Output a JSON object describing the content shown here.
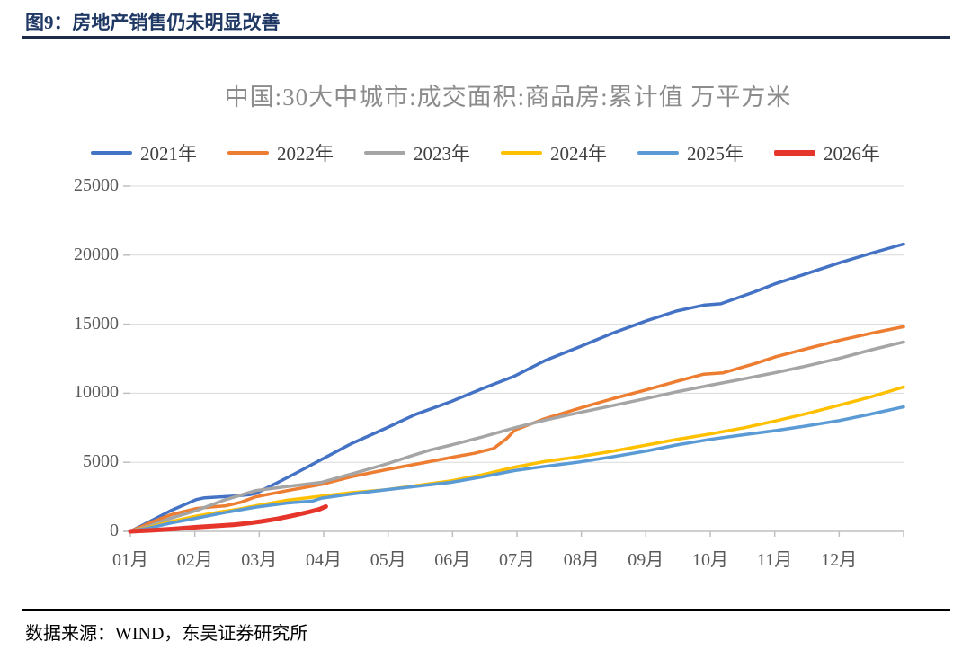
{
  "page": {
    "figure_label": "图9：房地产销售仍未明显改善",
    "source_note": "数据来源：WIND，东吴证券研究所"
  },
  "chart_data": {
    "type": "line",
    "title": "中国:30大中城市:成交面积:商品房:累计值 万平方米",
    "unit": "万平方米",
    "ylim": [
      0,
      25000
    ],
    "grid": "horizontal",
    "legend_position": "top",
    "yticks": [
      {
        "label": "25000",
        "value": 25000
      },
      {
        "label": "20000",
        "value": 20000
      },
      {
        "label": "15000",
        "value": 15000
      },
      {
        "label": "10000",
        "value": 10000
      },
      {
        "label": "5000",
        "value": 5000
      },
      {
        "label": "0",
        "value": 0
      }
    ],
    "xlabels": [
      "01月",
      "02月",
      "03月",
      "04月",
      "05月",
      "06月",
      "07月",
      "08月",
      "09月",
      "10月",
      "11月",
      "12月"
    ],
    "x_axis_note": "x = day of year, Jan 1 to Dec 31",
    "series": [
      {
        "name": "2021年",
        "color": "#4472C4",
        "width": 3.5,
        "points": [
          [
            1,
            0
          ],
          [
            10,
            700
          ],
          [
            20,
            1500
          ],
          [
            32,
            2300
          ],
          [
            36,
            2430
          ],
          [
            42,
            2480
          ],
          [
            50,
            2550
          ],
          [
            57,
            2650
          ],
          [
            60,
            2750
          ],
          [
            70,
            3500
          ],
          [
            80,
            4300
          ],
          [
            91,
            5200
          ],
          [
            105,
            6350
          ],
          [
            121,
            7450
          ],
          [
            135,
            8450
          ],
          [
            152,
            9400
          ],
          [
            167,
            10350
          ],
          [
            182,
            11250
          ],
          [
            196,
            12350
          ],
          [
            213,
            13400
          ],
          [
            228,
            14350
          ],
          [
            244,
            15250
          ],
          [
            258,
            15950
          ],
          [
            271,
            16380
          ],
          [
            279,
            16480
          ],
          [
            295,
            17350
          ],
          [
            305,
            17950
          ],
          [
            320,
            18700
          ],
          [
            335,
            19450
          ],
          [
            350,
            20150
          ],
          [
            365,
            20800
          ]
        ]
      },
      {
        "name": "2022年",
        "color": "#ED7D31",
        "width": 3.5,
        "points": [
          [
            1,
            0
          ],
          [
            10,
            600
          ],
          [
            20,
            1200
          ],
          [
            32,
            1650
          ],
          [
            38,
            1750
          ],
          [
            46,
            1850
          ],
          [
            53,
            2100
          ],
          [
            60,
            2500
          ],
          [
            75,
            2950
          ],
          [
            91,
            3400
          ],
          [
            105,
            3950
          ],
          [
            121,
            4450
          ],
          [
            135,
            4850
          ],
          [
            142,
            5050
          ],
          [
            152,
            5350
          ],
          [
            163,
            5650
          ],
          [
            172,
            6000
          ],
          [
            178,
            6700
          ],
          [
            182,
            7330
          ],
          [
            196,
            8150
          ],
          [
            213,
            8940
          ],
          [
            228,
            9600
          ],
          [
            244,
            10250
          ],
          [
            258,
            10850
          ],
          [
            271,
            11380
          ],
          [
            280,
            11480
          ],
          [
            295,
            12150
          ],
          [
            305,
            12650
          ],
          [
            320,
            13250
          ],
          [
            335,
            13840
          ],
          [
            350,
            14350
          ],
          [
            365,
            14820
          ]
        ]
      },
      {
        "name": "2023年",
        "color": "#A5A5A5",
        "width": 3.5,
        "points": [
          [
            1,
            0
          ],
          [
            10,
            400
          ],
          [
            20,
            950
          ],
          [
            32,
            1500
          ],
          [
            45,
            2250
          ],
          [
            60,
            2950
          ],
          [
            75,
            3250
          ],
          [
            91,
            3550
          ],
          [
            105,
            4150
          ],
          [
            121,
            4850
          ],
          [
            135,
            5550
          ],
          [
            142,
            5880
          ],
          [
            152,
            6250
          ],
          [
            167,
            6850
          ],
          [
            182,
            7500
          ],
          [
            196,
            8050
          ],
          [
            213,
            8620
          ],
          [
            228,
            9100
          ],
          [
            244,
            9620
          ],
          [
            258,
            10100
          ],
          [
            274,
            10580
          ],
          [
            290,
            11050
          ],
          [
            305,
            11500
          ],
          [
            320,
            12000
          ],
          [
            335,
            12540
          ],
          [
            350,
            13150
          ],
          [
            365,
            13710
          ]
        ]
      },
      {
        "name": "2024年",
        "color": "#FFC000",
        "width": 3.5,
        "points": [
          [
            1,
            0
          ],
          [
            10,
            300
          ],
          [
            20,
            700
          ],
          [
            32,
            1100
          ],
          [
            45,
            1450
          ],
          [
            52,
            1600
          ],
          [
            60,
            1850
          ],
          [
            75,
            2250
          ],
          [
            91,
            2550
          ],
          [
            105,
            2800
          ],
          [
            121,
            3000
          ],
          [
            135,
            3300
          ],
          [
            152,
            3650
          ],
          [
            167,
            4100
          ],
          [
            182,
            4650
          ],
          [
            196,
            5050
          ],
          [
            213,
            5420
          ],
          [
            228,
            5800
          ],
          [
            244,
            6250
          ],
          [
            258,
            6650
          ],
          [
            274,
            7050
          ],
          [
            290,
            7500
          ],
          [
            305,
            8000
          ],
          [
            320,
            8550
          ],
          [
            335,
            9140
          ],
          [
            350,
            9750
          ],
          [
            365,
            10450
          ]
        ]
      },
      {
        "name": "2025年",
        "color": "#5B9BD5",
        "width": 3.5,
        "points": [
          [
            1,
            0
          ],
          [
            10,
            250
          ],
          [
            20,
            600
          ],
          [
            32,
            950
          ],
          [
            45,
            1350
          ],
          [
            60,
            1750
          ],
          [
            75,
            2050
          ],
          [
            87,
            2200
          ],
          [
            91,
            2400
          ],
          [
            105,
            2700
          ],
          [
            121,
            3000
          ],
          [
            135,
            3250
          ],
          [
            152,
            3550
          ],
          [
            167,
            3950
          ],
          [
            182,
            4400
          ],
          [
            196,
            4700
          ],
          [
            213,
            5030
          ],
          [
            228,
            5400
          ],
          [
            244,
            5820
          ],
          [
            258,
            6250
          ],
          [
            274,
            6660
          ],
          [
            290,
            7000
          ],
          [
            305,
            7300
          ],
          [
            320,
            7650
          ],
          [
            335,
            8030
          ],
          [
            350,
            8500
          ],
          [
            365,
            9010
          ]
        ]
      },
      {
        "name": "2026年",
        "color": "#E6352B",
        "width": 5,
        "points": [
          [
            1,
            0
          ],
          [
            12,
            80
          ],
          [
            22,
            180
          ],
          [
            32,
            300
          ],
          [
            42,
            400
          ],
          [
            50,
            480
          ],
          [
            57,
            600
          ],
          [
            63,
            720
          ],
          [
            70,
            900
          ],
          [
            78,
            1150
          ],
          [
            85,
            1400
          ],
          [
            90,
            1600
          ],
          [
            93,
            1800
          ]
        ]
      }
    ]
  }
}
